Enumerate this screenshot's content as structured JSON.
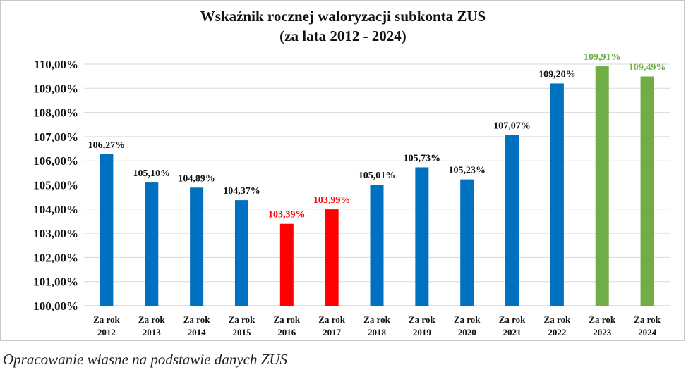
{
  "chart_data": {
    "type": "bar",
    "title": "Wskaźnik rocznej waloryzacji subkonta ZUS",
    "subtitle": "(za lata 2012 - 2024)",
    "categories": [
      [
        "Za rok",
        "2012"
      ],
      [
        "Za rok",
        "2013"
      ],
      [
        "Za rok",
        "2014"
      ],
      [
        "Za rok",
        "2015"
      ],
      [
        "Za rok",
        "2016"
      ],
      [
        "Za rok",
        "2017"
      ],
      [
        "Za rok",
        "2018"
      ],
      [
        "Za rok",
        "2019"
      ],
      [
        "Za rok",
        "2020"
      ],
      [
        "Za rok",
        "2021"
      ],
      [
        "Za rok",
        "2022"
      ],
      [
        "Za rok",
        "2023"
      ],
      [
        "Za rok",
        "2024"
      ]
    ],
    "values": [
      106.27,
      105.1,
      104.89,
      104.37,
      103.39,
      103.99,
      105.01,
      105.73,
      105.23,
      107.07,
      109.2,
      109.91,
      109.49
    ],
    "labels": [
      "106,27%",
      "105,10%",
      "104,89%",
      "104,37%",
      "103,39%",
      "103,99%",
      "105,01%",
      "105,73%",
      "105,23%",
      "107,07%",
      "109,20%",
      "109,91%",
      "109,49%"
    ],
    "bar_colors": [
      "#0070c0",
      "#0070c0",
      "#0070c0",
      "#0070c0",
      "#ff0000",
      "#ff0000",
      "#0070c0",
      "#0070c0",
      "#0070c0",
      "#0070c0",
      "#0070c0",
      "#70ad47",
      "#70ad47"
    ],
    "label_colors": [
      "#111111",
      "#111111",
      "#111111",
      "#111111",
      "#ff0000",
      "#ff0000",
      "#111111",
      "#111111",
      "#111111",
      "#111111",
      "#111111",
      "#70ad47",
      "#70ad47"
    ],
    "ylim": [
      100,
      110
    ],
    "yticks": [
      "100,00%",
      "101,00%",
      "102,00%",
      "103,00%",
      "104,00%",
      "105,00%",
      "106,00%",
      "107,00%",
      "108,00%",
      "109,00%",
      "110,00%"
    ],
    "grid": true,
    "xlabel": "",
    "ylabel": ""
  },
  "caption": "Opracowanie własne na podstawie danych ZUS"
}
